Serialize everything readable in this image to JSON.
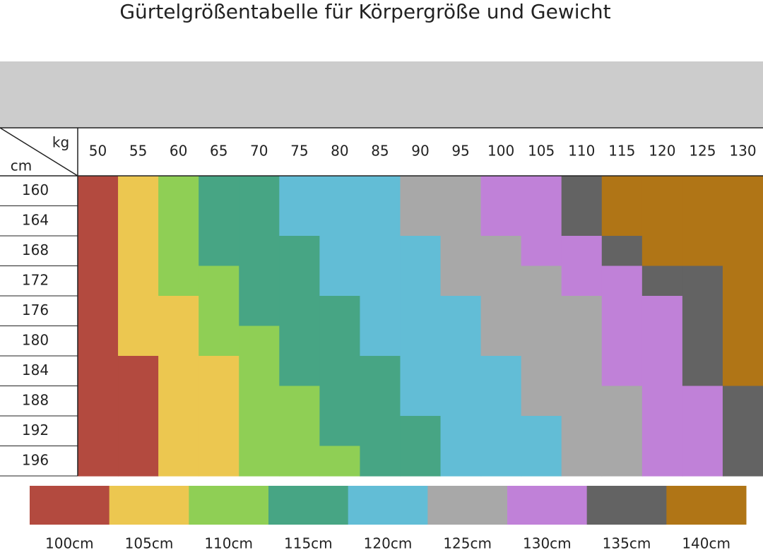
{
  "chart_data": {
    "type": "heatmap",
    "title": "Gürtelgrößentabelle für Körpergröße und Gewicht",
    "x_label": "kg",
    "y_label": "cm",
    "x": [
      50,
      55,
      60,
      65,
      70,
      75,
      80,
      85,
      90,
      95,
      100,
      105,
      110,
      115,
      120,
      125,
      130
    ],
    "y": [
      160,
      164,
      168,
      172,
      176,
      180,
      184,
      188,
      192,
      196
    ],
    "values": [
      [
        100,
        105,
        110,
        115,
        115,
        120,
        120,
        120,
        125,
        125,
        130,
        130,
        135,
        140,
        140,
        140,
        140
      ],
      [
        100,
        105,
        110,
        115,
        115,
        120,
        120,
        120,
        125,
        125,
        130,
        130,
        135,
        140,
        140,
        140,
        140
      ],
      [
        100,
        105,
        110,
        115,
        115,
        115,
        120,
        120,
        120,
        125,
        125,
        130,
        130,
        135,
        140,
        140,
        140
      ],
      [
        100,
        105,
        110,
        110,
        115,
        115,
        120,
        120,
        120,
        125,
        125,
        125,
        130,
        130,
        135,
        135,
        140
      ],
      [
        100,
        105,
        105,
        110,
        115,
        115,
        115,
        120,
        120,
        120,
        125,
        125,
        125,
        130,
        130,
        135,
        140
      ],
      [
        100,
        105,
        105,
        110,
        110,
        115,
        115,
        120,
        120,
        120,
        125,
        125,
        125,
        130,
        130,
        135,
        140
      ],
      [
        100,
        100,
        105,
        105,
        110,
        115,
        115,
        115,
        120,
        120,
        120,
        125,
        125,
        130,
        130,
        135,
        140
      ],
      [
        100,
        100,
        105,
        105,
        110,
        110,
        115,
        115,
        120,
        120,
        120,
        125,
        125,
        125,
        130,
        130,
        135
      ],
      [
        100,
        100,
        105,
        105,
        110,
        110,
        115,
        115,
        115,
        120,
        120,
        120,
        125,
        125,
        130,
        130,
        135
      ],
      [
        100,
        100,
        105,
        105,
        110,
        110,
        110,
        115,
        115,
        120,
        120,
        120,
        125,
        125,
        130,
        130,
        135
      ]
    ],
    "legend": [
      {
        "value": 100,
        "label": "100cm",
        "color": "#b34a3f"
      },
      {
        "value": 105,
        "label": "105cm",
        "color": "#ecc750"
      },
      {
        "value": 110,
        "label": "110cm",
        "color": "#8fcf55"
      },
      {
        "value": 115,
        "label": "115cm",
        "color": "#47a584"
      },
      {
        "value": 120,
        "label": "120cm",
        "color": "#62bdd6"
      },
      {
        "value": 125,
        "label": "125cm",
        "color": "#a8a8a8"
      },
      {
        "value": 130,
        "label": "130cm",
        "color": "#c081d8"
      },
      {
        "value": 135,
        "label": "135cm",
        "color": "#636363"
      },
      {
        "value": 140,
        "label": "140cm",
        "color": "#b07516"
      }
    ]
  }
}
